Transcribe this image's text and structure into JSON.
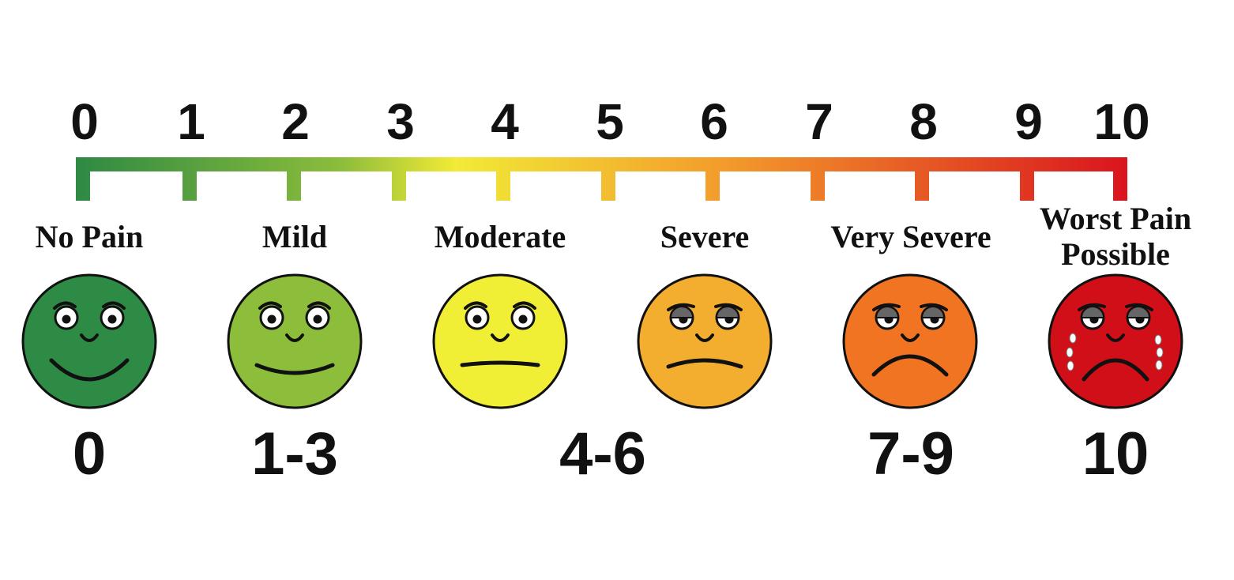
{
  "scale": {
    "min": 0,
    "max": 10,
    "ticks": [
      "0",
      "1",
      "2",
      "3",
      "4",
      "5",
      "6",
      "7",
      "8",
      "9",
      "10"
    ],
    "gradient_colors": [
      "#2f8a43",
      "#8cbd3b",
      "#f2ea36",
      "#f39a2b",
      "#d9151e"
    ]
  },
  "levels": [
    {
      "label_lines": [
        "No Pain"
      ],
      "range": "0",
      "face": "happy-face-icon",
      "color": "#2e8b46",
      "expression": "big-smile"
    },
    {
      "label_lines": [
        "Mild"
      ],
      "range": "1-3",
      "face": "slight-smile-face-icon",
      "color": "#8cbd3b",
      "expression": "smile"
    },
    {
      "label_lines": [
        "Moderate"
      ],
      "range": "4-6",
      "face": "neutral-face-icon",
      "color": "#f1ee36",
      "expression": "neutral"
    },
    {
      "label_lines": [
        "Severe"
      ],
      "range": "",
      "face": "frown-face-icon",
      "color": "#f3ae2f",
      "expression": "frown"
    },
    {
      "label_lines": [
        "Very Severe"
      ],
      "range": "7-9",
      "face": "sad-face-icon",
      "color": "#f07422",
      "expression": "sad"
    },
    {
      "label_lines": [
        "Worst Pain",
        "Possible"
      ],
      "range": "10",
      "face": "crying-face-icon",
      "color": "#d10f18",
      "expression": "crying"
    }
  ]
}
